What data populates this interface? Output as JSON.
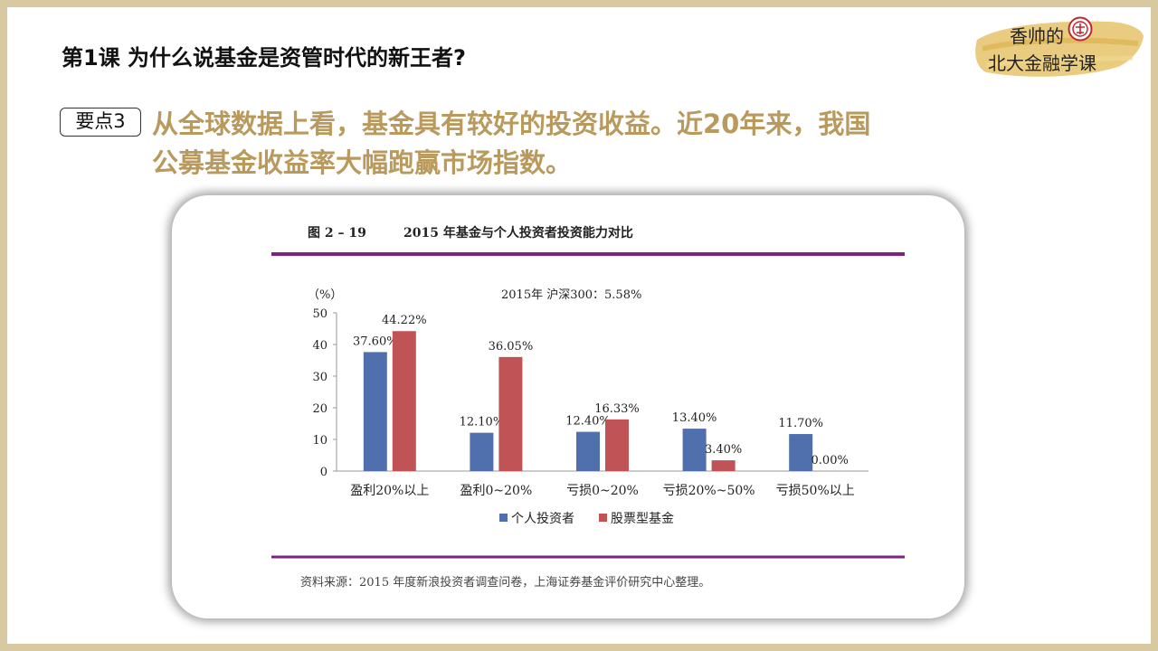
{
  "header": {
    "lesson_title": "第1课  为什么说基金是资管时代的新王者?"
  },
  "logo": {
    "line1": "香帅的",
    "line2": "北大金融学课"
  },
  "keypoint": {
    "badge": "要点3",
    "line1": "从全球数据上看，基金具有较好的投资收益。近20年来，我国",
    "line2": "公募基金收益率大幅跑赢市场指数。"
  },
  "figure": {
    "number": "图 2 – 19",
    "caption": "2015 年基金与个人投资者投资能力对比",
    "source": "资料来源：2015 年度新浪投资者调查问卷，上海证券基金评价研究中心整理。"
  },
  "chart_data": {
    "type": "bar",
    "title": "2015年   沪深300：5.58%",
    "ylabel": "（%）",
    "xlabel": "",
    "ylim": [
      0,
      50
    ],
    "yticks": [
      0,
      10,
      20,
      30,
      40,
      50
    ],
    "grid": false,
    "legend_position": "bottom",
    "categories": [
      "盈利20%以上",
      "盈利0~20%",
      "亏损0~20%",
      "亏损20%~50%",
      "亏损50%以上"
    ],
    "series": [
      {
        "name": "个人投资者",
        "color": "#4f6fad",
        "values": [
          37.6,
          12.1,
          12.4,
          13.4,
          11.7
        ],
        "labels": [
          "37.60%",
          "12.10%",
          "12.40%",
          "13.40%",
          "11.70%"
        ]
      },
      {
        "name": "股票型基金",
        "color": "#bf5356",
        "values": [
          44.22,
          36.05,
          16.33,
          3.4,
          0.0
        ],
        "labels": [
          "44.22%",
          "36.05%",
          "16.33%",
          "3.40%",
          "0.00%"
        ]
      }
    ],
    "rule_color": "#7b2383"
  }
}
